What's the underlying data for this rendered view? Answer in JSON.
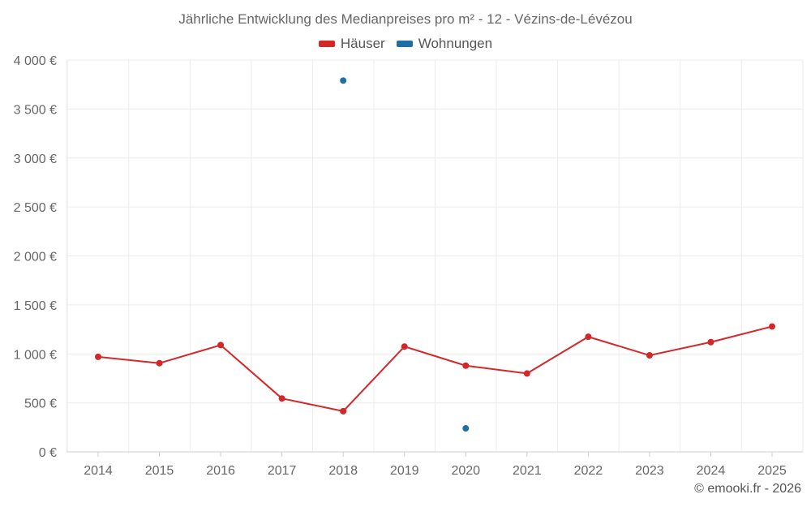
{
  "chart_data": {
    "type": "line",
    "title": "Jährliche Entwicklung des Medianpreises pro m² - 12 - Vézins-de-Lévézou",
    "categories": [
      "2014",
      "2015",
      "2016",
      "2017",
      "2018",
      "2019",
      "2020",
      "2021",
      "2022",
      "2023",
      "2024",
      "2025"
    ],
    "series": [
      {
        "name": "Häuser",
        "color": "#d62728",
        "values": [
          970,
          905,
          1090,
          545,
          415,
          1075,
          880,
          800,
          1175,
          985,
          1120,
          1280
        ]
      },
      {
        "name": "Wohnungen",
        "color": "#1f6fa6",
        "values": [
          null,
          null,
          null,
          null,
          3790,
          null,
          240,
          null,
          null,
          null,
          null,
          null
        ]
      }
    ],
    "yticks": [
      "0 €",
      "500 €",
      "1 000 €",
      "1 500 €",
      "2 000 €",
      "2 500 €",
      "3 000 €",
      "3 500 €",
      "4 000 €"
    ],
    "ytick_values": [
      0,
      500,
      1000,
      1500,
      2000,
      2500,
      3000,
      3500,
      4000
    ],
    "ylim": [
      0,
      4000
    ],
    "xlabel": "",
    "ylabel": "",
    "grid": true,
    "legend_position": "top-center"
  },
  "credit": "© emooki.fr - 2026"
}
